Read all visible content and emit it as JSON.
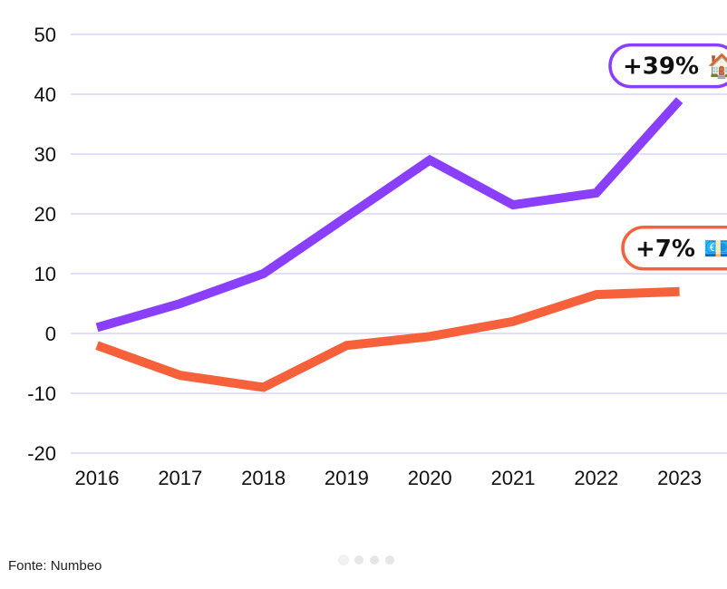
{
  "chart_data": {
    "type": "line",
    "x": [
      "2016",
      "2017",
      "2018",
      "2019",
      "2020",
      "2021",
      "2022",
      "2023"
    ],
    "ylim": [
      -20,
      50
    ],
    "yticks": [
      50,
      40,
      30,
      20,
      10,
      0,
      -10,
      -20
    ],
    "grid": true,
    "series": [
      {
        "name": "housing",
        "color": "#8a3ffc",
        "values": [
          1,
          5,
          10,
          19.5,
          29,
          21.5,
          23.5,
          39
        ]
      },
      {
        "name": "salaries",
        "color": "#f6603b",
        "values": [
          -2,
          -7,
          -9,
          -2,
          -0.5,
          2,
          6.5,
          7
        ]
      }
    ],
    "annotations": [
      {
        "series": "housing",
        "text": "+39%",
        "icon": "🏠",
        "color": "#8a3ffc"
      },
      {
        "series": "salaries",
        "text": "+7%",
        "icon": "💶",
        "color": "#f6603b"
      }
    ]
  },
  "footer": {
    "source": "Fonte: Numbeo"
  }
}
